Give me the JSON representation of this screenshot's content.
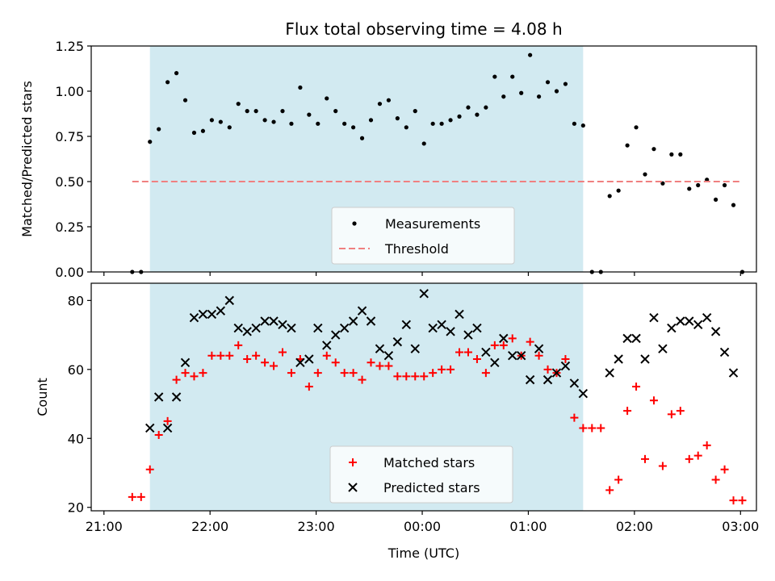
{
  "chart_data": {
    "type": "scatter",
    "title": "Flux total observing time = 4.08 h",
    "xlabel": "Time (UTC)",
    "x_ticks": [
      "21:00",
      "22:00",
      "23:00",
      "00:00",
      "01:00",
      "02:00",
      "03:00"
    ],
    "shaded_region": {
      "start": "21:26",
      "end": "01:31",
      "color": "#add8e6"
    },
    "panels": [
      {
        "ylabel": "Matched/Predicted stars",
        "ylim": [
          0,
          1.25
        ],
        "y_ticks": [
          "0.00",
          "0.25",
          "0.50",
          "0.75",
          "1.00",
          "1.25"
        ],
        "legend_position": "lower-center",
        "series": [
          {
            "name": "Measurements",
            "marker": "dot",
            "color": "#000000",
            "x": [
              "21:16",
              "21:21",
              "21:26",
              "21:31",
              "21:36",
              "21:41",
              "21:46",
              "21:51",
              "21:56",
              "22:01",
              "22:06",
              "22:11",
              "22:16",
              "22:21",
              "22:26",
              "22:31",
              "22:36",
              "22:41",
              "22:46",
              "22:51",
              "22:56",
              "23:01",
              "23:06",
              "23:11",
              "23:16",
              "23:21",
              "23:26",
              "23:31",
              "23:36",
              "23:41",
              "23:46",
              "23:51",
              "23:56",
              "00:01",
              "00:06",
              "00:11",
              "00:16",
              "00:21",
              "00:26",
              "00:31",
              "00:36",
              "00:41",
              "00:46",
              "00:51",
              "00:56",
              "01:01",
              "01:06",
              "01:11",
              "01:16",
              "01:21",
              "01:26",
              "01:31",
              "01:36",
              "01:41",
              "01:46",
              "01:51",
              "01:56",
              "02:01",
              "02:06",
              "02:11",
              "02:16",
              "02:21",
              "02:26",
              "02:31",
              "02:36",
              "02:41",
              "02:46",
              "02:51",
              "02:56",
              "03:01"
            ],
            "y": [
              0,
              0,
              0.72,
              0.79,
              1.05,
              1.1,
              0.95,
              0.77,
              0.78,
              0.84,
              0.83,
              0.8,
              0.93,
              0.89,
              0.89,
              0.84,
              0.83,
              0.89,
              0.82,
              1.02,
              0.87,
              0.82,
              0.96,
              0.89,
              0.82,
              0.8,
              0.74,
              0.84,
              0.93,
              0.95,
              0.85,
              0.8,
              0.89,
              0.71,
              0.82,
              0.82,
              0.84,
              0.86,
              0.91,
              0.87,
              0.91,
              1.08,
              0.97,
              1.08,
              0.99,
              1.2,
              0.97,
              1.05,
              1.0,
              1.04,
              0.82,
              0.81,
              0,
              0,
              0.42,
              0.45,
              0.7,
              0.8,
              0.54,
              0.68,
              0.49,
              0.65,
              0.65,
              0.46,
              0.48,
              0.51,
              0.4,
              0.48,
              0.37,
              0
            ]
          },
          {
            "name": "Threshold",
            "marker": "dashed-line",
            "color": "#f08080",
            "x": [
              "21:16",
              "03:01"
            ],
            "y": [
              0.5,
              0.5
            ]
          }
        ]
      },
      {
        "ylabel": "Count",
        "ylim": [
          19,
          85
        ],
        "y_ticks": [
          "20",
          "40",
          "60",
          "80"
        ],
        "legend_position": "lower-center",
        "series": [
          {
            "name": "Matched stars",
            "marker": "plus",
            "color": "#ff0000",
            "x": [
              "21:16",
              "21:21",
              "21:26",
              "21:31",
              "21:36",
              "21:41",
              "21:46",
              "21:51",
              "21:56",
              "22:01",
              "22:06",
              "22:11",
              "22:16",
              "22:21",
              "22:26",
              "22:31",
              "22:36",
              "22:41",
              "22:46",
              "22:51",
              "22:56",
              "23:01",
              "23:06",
              "23:11",
              "23:16",
              "23:21",
              "23:26",
              "23:31",
              "23:36",
              "23:41",
              "23:46",
              "23:51",
              "23:56",
              "00:01",
              "00:06",
              "00:11",
              "00:16",
              "00:21",
              "00:26",
              "00:31",
              "00:36",
              "00:41",
              "00:46",
              "00:51",
              "00:56",
              "01:01",
              "01:06",
              "01:11",
              "01:16",
              "01:21",
              "01:26",
              "01:31",
              "01:36",
              "01:41",
              "01:46",
              "01:51",
              "01:56",
              "02:01",
              "02:06",
              "02:11",
              "02:16",
              "02:21",
              "02:26",
              "02:31",
              "02:36",
              "02:41",
              "02:46",
              "02:51",
              "02:56",
              "03:01"
            ],
            "y": [
              23,
              23,
              31,
              41,
              45,
              57,
              59,
              58,
              59,
              64,
              64,
              64,
              67,
              63,
              64,
              62,
              61,
              65,
              59,
              63,
              55,
              59,
              64,
              62,
              59,
              59,
              57,
              62,
              61,
              61,
              58,
              58,
              58,
              58,
              59,
              60,
              60,
              65,
              65,
              63,
              59,
              67,
              67,
              69,
              64,
              68,
              64,
              60,
              59,
              63,
              46,
              43,
              43,
              43,
              25,
              28,
              48,
              55,
              34,
              51,
              32,
              47,
              48,
              34,
              35,
              38,
              28,
              31,
              22,
              22
            ]
          },
          {
            "name": "Predicted stars",
            "marker": "x",
            "color": "#000000",
            "x": [
              "21:26",
              "21:31",
              "21:36",
              "21:41",
              "21:46",
              "21:51",
              "21:56",
              "22:01",
              "22:06",
              "22:11",
              "22:16",
              "22:21",
              "22:26",
              "22:31",
              "22:36",
              "22:41",
              "22:46",
              "22:51",
              "22:56",
              "23:01",
              "23:06",
              "23:11",
              "23:16",
              "23:21",
              "23:26",
              "23:31",
              "23:36",
              "23:41",
              "23:46",
              "23:51",
              "23:56",
              "00:01",
              "00:06",
              "00:11",
              "00:16",
              "00:21",
              "00:26",
              "00:31",
              "00:36",
              "00:41",
              "00:46",
              "00:51",
              "00:56",
              "01:01",
              "01:06",
              "01:11",
              "01:16",
              "01:21",
              "01:26",
              "01:31",
              "01:46",
              "01:51",
              "01:56",
              "02:01",
              "02:06",
              "02:11",
              "02:16",
              "02:21",
              "02:26",
              "02:31",
              "02:36",
              "02:41",
              "02:46",
              "02:51",
              "02:56"
            ],
            "y": [
              43,
              52,
              43,
              52,
              62,
              75,
              76,
              76,
              77,
              80,
              72,
              71,
              72,
              74,
              74,
              73,
              72,
              62,
              63,
              72,
              67,
              70,
              72,
              74,
              77,
              74,
              66,
              64,
              68,
              73,
              66,
              82,
              72,
              73,
              71,
              76,
              70,
              72,
              65,
              62,
              69,
              64,
              64,
              57,
              66,
              57,
              59,
              61,
              56,
              53,
              59,
              63,
              69,
              69,
              63,
              75,
              66,
              72,
              74,
              74,
              73,
              75,
              71,
              65,
              59
            ]
          }
        ]
      }
    ]
  }
}
